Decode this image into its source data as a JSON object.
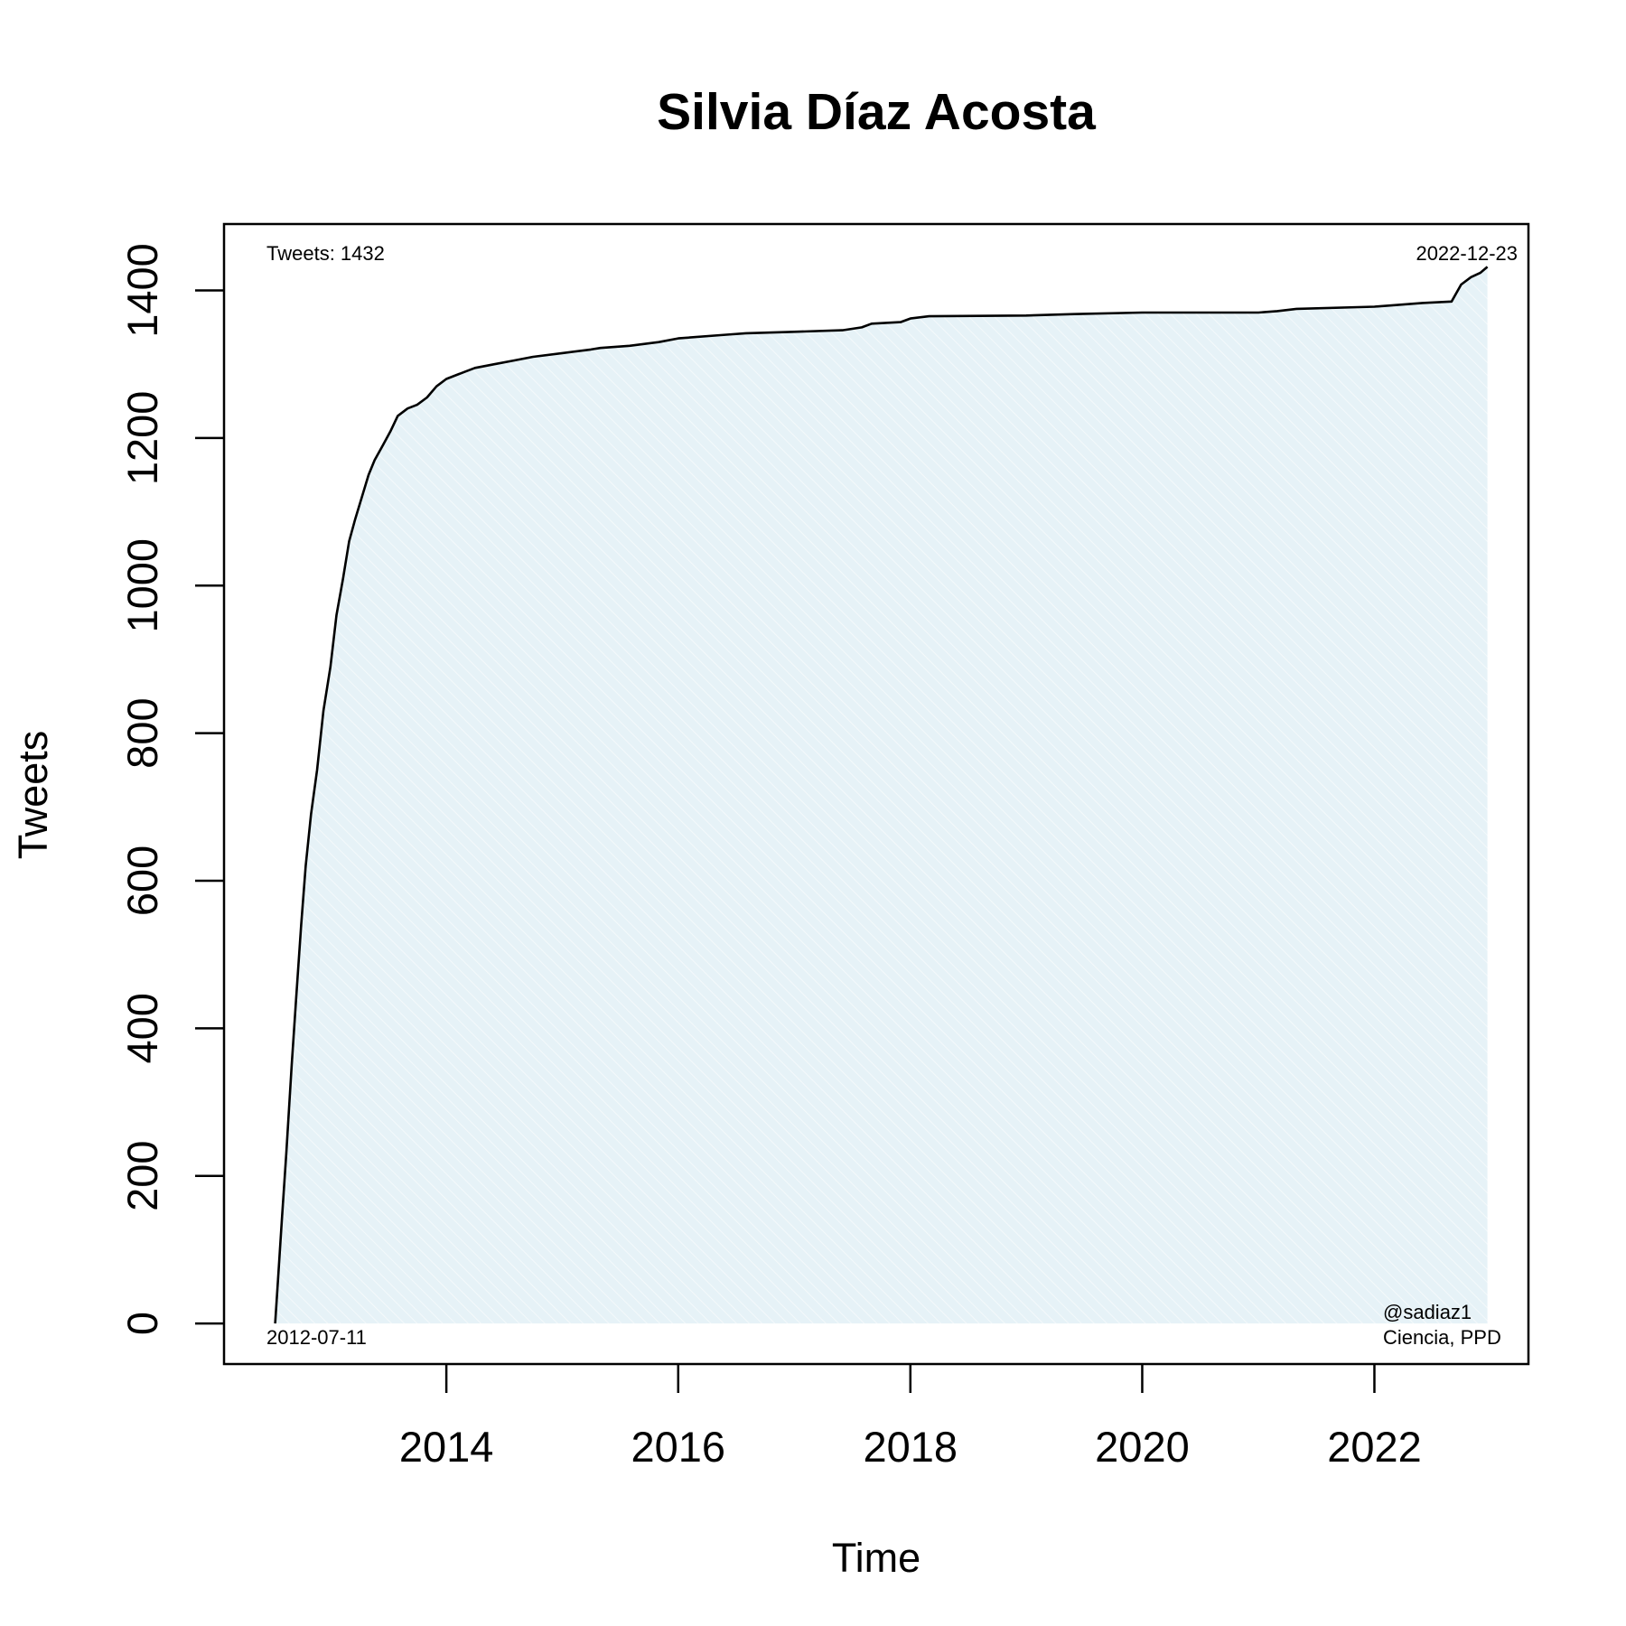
{
  "chart_data": {
    "type": "area",
    "title": "Silvia Díaz Acosta",
    "xlabel": "Time",
    "ylabel": "Tweets",
    "xlim": [
      "2012-02-01",
      "2023-05-01"
    ],
    "ylim": [
      -55,
      1490
    ],
    "x_ticks": [
      "2014",
      "2016",
      "2018",
      "2020",
      "2022"
    ],
    "y_ticks": [
      "0",
      "200",
      "400",
      "600",
      "800",
      "1000",
      "1200",
      "1400"
    ],
    "annotations": {
      "total": "Tweets: 1432",
      "start_date": "2012-07-11",
      "end_date": "2022-12-23",
      "handle": "@sadiaz1",
      "affiliation": "Ciencia, PPD"
    },
    "fill_color": "#e6f2f7",
    "line_color": "#000000",
    "grid": false,
    "series": [
      {
        "x": [
          "2012-07-11",
          "2012-07-20",
          "2012-08-01",
          "2012-08-15",
          "2012-09-01",
          "2012-09-15",
          "2012-10-01",
          "2012-10-15",
          "2012-11-01",
          "2012-11-20",
          "2012-12-10",
          "2013-01-01",
          "2013-01-20",
          "2013-02-10",
          "2013-03-01",
          "2013-03-20",
          "2013-04-10",
          "2013-05-01",
          "2013-05-20",
          "2013-06-15",
          "2013-07-10",
          "2013-08-01",
          "2013-09-01",
          "2013-10-01",
          "2013-11-01",
          "2013-12-01",
          "2014-01-01",
          "2014-03-01",
          "2014-04-01",
          "2014-06-01",
          "2014-08-01",
          "2014-10-01",
          "2015-01-01",
          "2015-04-01",
          "2015-05-01",
          "2015-08-01",
          "2015-11-01",
          "2016-01-01",
          "2016-06-01",
          "2016-08-01",
          "2017-01-01",
          "2017-06-01",
          "2017-08-01",
          "2017-09-01",
          "2017-12-01",
          "2018-01-01",
          "2018-03-01",
          "2019-01-01",
          "2019-06-01",
          "2020-01-01",
          "2021-01-01",
          "2021-03-01",
          "2021-05-01",
          "2022-01-01",
          "2022-03-01",
          "2022-06-01",
          "2022-09-01",
          "2022-10-01",
          "2022-11-01",
          "2022-12-01",
          "2022-12-23"
        ],
        "y": [
          0,
          60,
          140,
          230,
          350,
          440,
          540,
          620,
          690,
          750,
          830,
          890,
          960,
          1010,
          1060,
          1090,
          1120,
          1150,
          1170,
          1190,
          1210,
          1230,
          1240,
          1245,
          1255,
          1270,
          1280,
          1290,
          1295,
          1300,
          1305,
          1310,
          1315,
          1320,
          1322,
          1325,
          1330,
          1335,
          1340,
          1342,
          1344,
          1346,
          1350,
          1355,
          1357,
          1362,
          1365,
          1366,
          1368,
          1370,
          1370,
          1372,
          1375,
          1378,
          1380,
          1383,
          1385,
          1408,
          1418,
          1424,
          1432
        ]
      }
    ]
  }
}
